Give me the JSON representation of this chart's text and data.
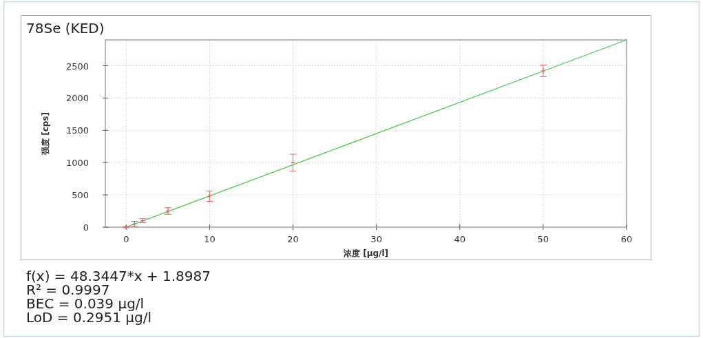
{
  "chart_data": {
    "type": "scatter",
    "title": "78Se (KED)",
    "xlabel": "浓度 [µg/l]",
    "ylabel": "强度 [cps]",
    "xlim": [
      -2.5,
      60
    ],
    "ylim": [
      0,
      2900
    ],
    "xticks": [
      0,
      10,
      20,
      30,
      40,
      50,
      60
    ],
    "yticks": [
      0,
      500,
      1000,
      1500,
      2000,
      2500
    ],
    "grid": true,
    "marker": "cross",
    "series": [
      {
        "type": "line",
        "color": "#55c455",
        "x": [
          0,
          60
        ],
        "values": [
          0,
          2900
        ],
        "line_style": "solid",
        "marker": "none"
      },
      {
        "color": "#e06060",
        "x": [
          0,
          1,
          2,
          5,
          10,
          20,
          50
        ],
        "values": [
          0,
          50,
          100,
          250,
          480,
          1000,
          2420
        ],
        "errors": [
          10,
          40,
          30,
          50,
          80,
          130,
          90
        ]
      }
    ],
    "annotations": [
      "f(x) = 48.3447*x + 1.8987",
      "R² = 0.9997",
      "BEC = 0.039 µg/l",
      "LoD = 0.2951 µg/l"
    ]
  }
}
